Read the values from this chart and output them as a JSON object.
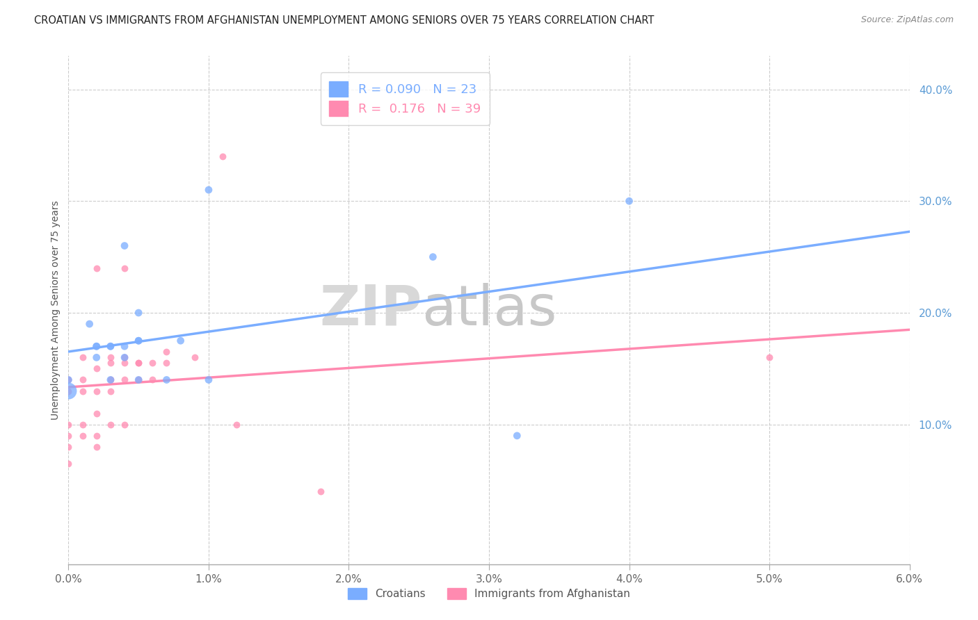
{
  "title": "CROATIAN VS IMMIGRANTS FROM AFGHANISTAN UNEMPLOYMENT AMONG SENIORS OVER 75 YEARS CORRELATION CHART",
  "source": "Source: ZipAtlas.com",
  "ylabel": "Unemployment Among Seniors over 75 years",
  "xlim": [
    0.0,
    0.06
  ],
  "ylim": [
    -0.025,
    0.43
  ],
  "croatians_R": "0.090",
  "croatians_N": "23",
  "afghanistan_R": "0.176",
  "afghanistan_N": "39",
  "croatian_color": "#7aadff",
  "afghanistan_color": "#ff8ab0",
  "watermark_zip": "ZIP",
  "watermark_atlas": "atlas",
  "croatians_x": [
    0.0,
    0.0,
    0.0015,
    0.002,
    0.002,
    0.002,
    0.003,
    0.003,
    0.003,
    0.004,
    0.004,
    0.004,
    0.005,
    0.005,
    0.005,
    0.005,
    0.007,
    0.008,
    0.01,
    0.01,
    0.026,
    0.032,
    0.04
  ],
  "croatians_y": [
    0.13,
    0.14,
    0.19,
    0.17,
    0.17,
    0.16,
    0.17,
    0.17,
    0.14,
    0.16,
    0.26,
    0.17,
    0.175,
    0.175,
    0.14,
    0.2,
    0.14,
    0.175,
    0.14,
    0.31,
    0.25,
    0.09,
    0.3
  ],
  "croatians_size": 60,
  "croatians_big_size": 300,
  "afghanistan_x": [
    0.0,
    0.0,
    0.0,
    0.0,
    0.0,
    0.0,
    0.001,
    0.001,
    0.001,
    0.001,
    0.001,
    0.002,
    0.002,
    0.002,
    0.002,
    0.002,
    0.002,
    0.003,
    0.003,
    0.003,
    0.003,
    0.003,
    0.004,
    0.004,
    0.004,
    0.004,
    0.004,
    0.005,
    0.005,
    0.005,
    0.006,
    0.006,
    0.007,
    0.007,
    0.009,
    0.011,
    0.012,
    0.018,
    0.05
  ],
  "afghanistan_y": [
    0.065,
    0.08,
    0.09,
    0.1,
    0.13,
    0.14,
    0.09,
    0.1,
    0.13,
    0.14,
    0.16,
    0.08,
    0.09,
    0.11,
    0.13,
    0.15,
    0.24,
    0.1,
    0.13,
    0.14,
    0.155,
    0.16,
    0.1,
    0.14,
    0.16,
    0.155,
    0.24,
    0.155,
    0.155,
    0.14,
    0.14,
    0.155,
    0.155,
    0.165,
    0.16,
    0.34,
    0.1,
    0.04,
    0.16
  ],
  "afghanistan_size": 50,
  "x_ticks": [
    0.0,
    0.01,
    0.02,
    0.03,
    0.04,
    0.05,
    0.06
  ],
  "y_ticks": [
    0.1,
    0.2,
    0.3,
    0.4
  ]
}
